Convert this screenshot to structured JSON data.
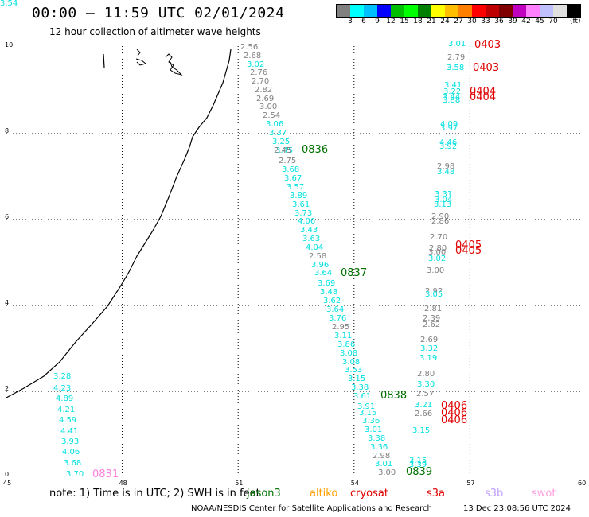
{
  "header": {
    "title": "00:00 — 11:59 UTC 02/01/2024",
    "subtitle": "12 hour collection of altimeter wave heights"
  },
  "colorbar": {
    "colors": [
      "#808080",
      "#00ffff",
      "#00bfff",
      "#0000ff",
      "#00bf00",
      "#00ff00",
      "#008000",
      "#ffff00",
      "#ffbf00",
      "#ff8000",
      "#ff0000",
      "#bf0000",
      "#800000",
      "#bf00bf",
      "#ff80ff",
      "#c0c0ff",
      "#e0e0e0",
      "#000000"
    ],
    "labels": [
      "3",
      "6",
      "9",
      "12",
      "15",
      "18",
      "21",
      "24",
      "27",
      "30",
      "33",
      "36",
      "39",
      "42",
      "45",
      "70"
    ],
    "unit": "(ft)"
  },
  "axes": {
    "x_ticks": [
      "45",
      "48",
      "51",
      "54",
      "57",
      "60"
    ],
    "y_ticks": [
      "0",
      "2",
      "4",
      "6",
      "8",
      "10"
    ]
  },
  "wave_labels": [
    {
      "t": "2.56",
      "c": "#808080"
    },
    {
      "t": "2.68",
      "c": "#808080"
    },
    {
      "t": "3.02",
      "c": "#00e0e0"
    },
    {
      "t": "2.76",
      "c": "#808080"
    },
    {
      "t": "2.70",
      "c": "#808080"
    },
    {
      "t": "2.82",
      "c": "#808080"
    },
    {
      "t": "2.69",
      "c": "#808080"
    },
    {
      "t": "3.00",
      "c": "#808080"
    },
    {
      "t": "2.54",
      "c": "#808080"
    },
    {
      "t": "3.06",
      "c": "#00e0e0"
    },
    {
      "t": "3.37",
      "c": "#00e0e0"
    },
    {
      "t": "3.25",
      "c": "#00e0e0"
    },
    {
      "t": "3.45",
      "c": "#00e0e0"
    },
    {
      "t": "2.45",
      "c": "#808080"
    },
    {
      "t": "2.75",
      "c": "#808080"
    },
    {
      "t": "3.68",
      "c": "#00e0e0"
    },
    {
      "t": "3.67",
      "c": "#00e0e0"
    },
    {
      "t": "3.57",
      "c": "#00e0e0"
    },
    {
      "t": "3.89",
      "c": "#00e0e0"
    },
    {
      "t": "3.61",
      "c": "#00e0e0"
    },
    {
      "t": "3.73",
      "c": "#00e0e0"
    },
    {
      "t": "4.06",
      "c": "#00e0e0"
    },
    {
      "t": "3.43",
      "c": "#00e0e0"
    },
    {
      "t": "3.63",
      "c": "#00e0e0"
    },
    {
      "t": "4.04",
      "c": "#00e0e0"
    },
    {
      "t": "2.58",
      "c": "#808080"
    },
    {
      "t": "3.96",
      "c": "#00e0e0"
    },
    {
      "t": "3.64",
      "c": "#00e0e0"
    },
    {
      "t": "3.69",
      "c": "#00e0e0"
    },
    {
      "t": "3.48",
      "c": "#00e0e0"
    },
    {
      "t": "3.62",
      "c": "#00e0e0"
    },
    {
      "t": "3.64",
      "c": "#00e0e0"
    },
    {
      "t": "3.76",
      "c": "#00e0e0"
    },
    {
      "t": "2.95",
      "c": "#808080"
    },
    {
      "t": "3.11",
      "c": "#00e0e0"
    },
    {
      "t": "3.86",
      "c": "#00e0e0"
    },
    {
      "t": "3.08",
      "c": "#00e0e0"
    },
    {
      "t": "3.08",
      "c": "#00e0e0"
    },
    {
      "t": "3.53",
      "c": "#00e0e0"
    },
    {
      "t": "3.15",
      "c": "#00e0e0"
    },
    {
      "t": "3.38",
      "c": "#00e0e0"
    },
    {
      "t": "3.61",
      "c": "#00e0e0"
    },
    {
      "t": "3.91",
      "c": "#00e0e0"
    },
    {
      "t": "3.15",
      "c": "#00e0e0"
    },
    {
      "t": "3.36",
      "c": "#00e0e0"
    },
    {
      "t": "3.01",
      "c": "#00e0e0"
    },
    {
      "t": "3.38",
      "c": "#00e0e0"
    },
    {
      "t": "3.36",
      "c": "#00e0e0"
    },
    {
      "t": "2.98",
      "c": "#808080"
    },
    {
      "t": "3.01",
      "c": "#00e0e0"
    },
    {
      "t": "3.00",
      "c": "#808080"
    },
    {
      "t": "3.01",
      "c": "#00e0e0"
    },
    {
      "t": "2.79",
      "c": "#808080"
    },
    {
      "t": "3.58",
      "c": "#00e0e0"
    },
    {
      "t": "3.41",
      "c": "#00e0e0"
    },
    {
      "t": "3.22",
      "c": "#00e0e0"
    },
    {
      "t": "3.44",
      "c": "#00e0e0"
    },
    {
      "t": "3.88",
      "c": "#00e0e0"
    },
    {
      "t": "4.09",
      "c": "#00e0e0"
    },
    {
      "t": "3.97",
      "c": "#00e0e0"
    },
    {
      "t": "4.46",
      "c": "#00e0e0"
    },
    {
      "t": "3.92",
      "c": "#00e0e0"
    },
    {
      "t": "2.98",
      "c": "#808080"
    },
    {
      "t": "3.48",
      "c": "#00e0e0"
    },
    {
      "t": "3.31",
      "c": "#00e0e0"
    },
    {
      "t": "3.04",
      "c": "#00e0e0"
    },
    {
      "t": "3.13",
      "c": "#00e0e0"
    },
    {
      "t": "2.90",
      "c": "#808080"
    },
    {
      "t": "2.86",
      "c": "#808080"
    },
    {
      "t": "2.70",
      "c": "#808080"
    },
    {
      "t": "2.80",
      "c": "#808080"
    },
    {
      "t": "3.00",
      "c": "#808080"
    },
    {
      "t": "3.02",
      "c": "#00e0e0"
    },
    {
      "t": "3.00",
      "c": "#808080"
    },
    {
      "t": "2.92",
      "c": "#808080"
    },
    {
      "t": "3.05",
      "c": "#00e0e0"
    },
    {
      "t": "2.81",
      "c": "#808080"
    },
    {
      "t": "2.39",
      "c": "#808080"
    },
    {
      "t": "2.62",
      "c": "#808080"
    },
    {
      "t": "2.69",
      "c": "#808080"
    },
    {
      "t": "3.32",
      "c": "#00e0e0"
    },
    {
      "t": "3.19",
      "c": "#00e0e0"
    },
    {
      "t": "2.80",
      "c": "#808080"
    },
    {
      "t": "3.30",
      "c": "#00e0e0"
    },
    {
      "t": "2.57",
      "c": "#808080"
    },
    {
      "t": "3.21",
      "c": "#00e0e0"
    },
    {
      "t": "2.66",
      "c": "#808080"
    },
    {
      "t": "3.15",
      "c": "#00e0e0"
    },
    {
      "t": "3.15",
      "c": "#00e0e0"
    },
    {
      "t": "3.39",
      "c": "#00e0e0"
    },
    {
      "t": "3.28",
      "c": "#00e0e0"
    },
    {
      "t": "4.23",
      "c": "#00e0e0"
    },
    {
      "t": "4.89",
      "c": "#00e0e0"
    },
    {
      "t": "4.21",
      "c": "#00e0e0"
    },
    {
      "t": "4.59",
      "c": "#00e0e0"
    },
    {
      "t": "4.41",
      "c": "#00e0e0"
    },
    {
      "t": "3.93",
      "c": "#00e0e0"
    },
    {
      "t": "4.06",
      "c": "#00e0e0"
    },
    {
      "t": "3.68",
      "c": "#00e0e0"
    },
    {
      "t": "3.70",
      "c": "#00e0e0"
    },
    {
      "t": "3.54",
      "c": "#00e0e0"
    }
  ],
  "pass_labels": [
    {
      "t": "0836",
      "c": "#007000"
    },
    {
      "t": "0837",
      "c": "#007000"
    },
    {
      "t": "0838",
      "c": "#007000"
    },
    {
      "t": "0839",
      "c": "#007000"
    },
    {
      "t": "0403",
      "c": "#e00000"
    },
    {
      "t": "0403",
      "c": "#e00000"
    },
    {
      "t": "0404",
      "c": "#e00000"
    },
    {
      "t": "0404",
      "c": "#e00000"
    },
    {
      "t": "0405",
      "c": "#e00000"
    },
    {
      "t": "0405",
      "c": "#e00000"
    },
    {
      "t": "0406",
      "c": "#e00000"
    },
    {
      "t": "0406",
      "c": "#e00000"
    },
    {
      "t": "0406",
      "c": "#e00000"
    },
    {
      "t": "0831",
      "c": "#ff80e0"
    }
  ],
  "footer": {
    "note": "note: 1) Time is in UTC; 2) SWH is in feet",
    "legend": [
      {
        "label": "jason3",
        "color": "#007000"
      },
      {
        "label": "altiko",
        "color": "#ffa000"
      },
      {
        "label": "cryosat",
        "color": "#e00000"
      },
      {
        "label": "s3a",
        "color": "#e00000"
      },
      {
        "label": "s3b",
        "color": "#c0a0ff"
      },
      {
        "label": "swot",
        "color": "#ffa0e0"
      }
    ],
    "credit": "NOAA/NESDIS Center for Satellite Applications and Research",
    "timestamp": "13 Dec 23:08:56 UTC 2024"
  }
}
